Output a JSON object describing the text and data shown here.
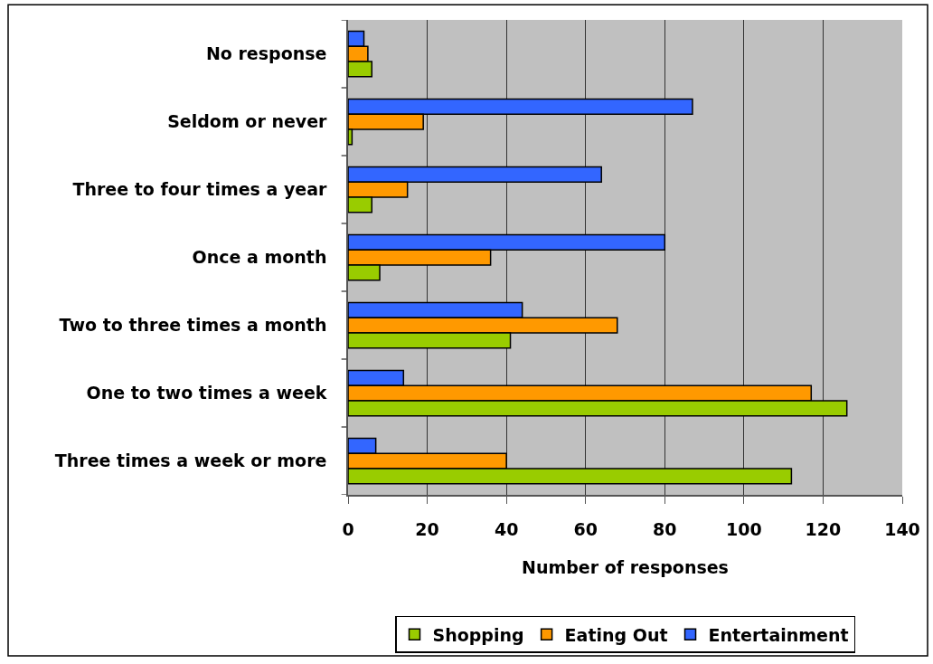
{
  "chart_data": {
    "type": "bar",
    "orientation": "horizontal",
    "xlabel": "Number of responses",
    "categories": [
      "No response",
      "Seldom or never",
      "Three to four times a year",
      "Once a month",
      "Two to three times a month",
      "One to two times a week",
      "Three times a week or more"
    ],
    "series": [
      {
        "name": "Shopping",
        "color": "#99cc00",
        "values": [
          6,
          1,
          6,
          8,
          41,
          126,
          112
        ]
      },
      {
        "name": "Eating Out",
        "color": "#ff9900",
        "values": [
          5,
          19,
          15,
          36,
          68,
          117,
          40
        ]
      },
      {
        "name": "Entertainment",
        "color": "#3366ff",
        "values": [
          4,
          87,
          64,
          80,
          44,
          14,
          7
        ]
      }
    ],
    "xlim": [
      0,
      140
    ],
    "xticks": [
      0,
      20,
      40,
      60,
      80,
      100,
      120,
      140
    ],
    "grid": "x",
    "legend": "bottom"
  }
}
